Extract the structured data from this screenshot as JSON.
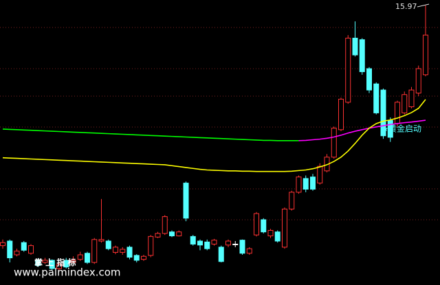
{
  "chart_data": {
    "type": "candlestick",
    "ylim": [
      6.81,
      16.15
    ],
    "up_color": "#ff3232",
    "down_color": "#54ffff",
    "flat_color": "#ffffff",
    "candles": [
      [
        8.1,
        8.2,
        8.3,
        8.0
      ],
      [
        8.25,
        7.7,
        8.3,
        7.55
      ],
      [
        7.8,
        7.92,
        8.0,
        7.75
      ],
      [
        8.2,
        7.95,
        8.25,
        7.9
      ],
      [
        7.85,
        8.1,
        8.15,
        7.8
      ],
      [
        7.62,
        7.45,
        7.68,
        7.4
      ],
      [
        7.55,
        7.62,
        7.7,
        7.5
      ],
      [
        7.62,
        7.35,
        7.65,
        7.3
      ],
      [
        7.35,
        7.48,
        7.55,
        7.3
      ],
      [
        7.62,
        7.4,
        7.7,
        7.35
      ],
      [
        7.55,
        7.62,
        7.75,
        7.5
      ],
      [
        7.65,
        7.8,
        7.9,
        7.6
      ],
      [
        7.85,
        7.55,
        7.9,
        7.5
      ],
      [
        7.55,
        8.3,
        8.35,
        7.5
      ],
      [
        8.25,
        8.3,
        9.63,
        8.2
      ],
      [
        8.25,
        8.0,
        8.3,
        7.95
      ],
      [
        7.88,
        8.05,
        8.1,
        7.82
      ],
      [
        7.88,
        7.98,
        8.05,
        7.8
      ],
      [
        8.05,
        7.72,
        8.1,
        7.65
      ],
      [
        7.78,
        7.62,
        7.82,
        7.55
      ],
      [
        7.65,
        7.75,
        7.8,
        7.6
      ],
      [
        7.78,
        8.4,
        8.45,
        7.72
      ],
      [
        8.38,
        8.5,
        8.55,
        8.35
      ],
      [
        8.5,
        9.05,
        9.1,
        8.45
      ],
      [
        8.55,
        8.42,
        8.6,
        8.38
      ],
      [
        8.42,
        8.55,
        8.6,
        8.4
      ],
      [
        10.15,
        9.0,
        10.2,
        8.9
      ],
      [
        8.4,
        8.15,
        8.45,
        8.1
      ],
      [
        8.25,
        8.12,
        8.3,
        7.95
      ],
      [
        8.22,
        8.0,
        8.3,
        7.95
      ],
      [
        8.15,
        8.28,
        8.32,
        8.1
      ],
      [
        8.05,
        7.58,
        8.1,
        7.55
      ],
      [
        8.12,
        8.25,
        8.3,
        8.05
      ],
      [
        8.15,
        8.15,
        8.25,
        8.05
      ],
      [
        8.28,
        7.85,
        8.3,
        7.8
      ],
      [
        7.85,
        8.0,
        8.05,
        7.8
      ],
      [
        8.45,
        9.15,
        9.2,
        8.4
      ],
      [
        8.95,
        8.55,
        9.0,
        8.5
      ],
      [
        8.42,
        8.6,
        8.65,
        8.35
      ],
      [
        8.55,
        8.25,
        8.6,
        8.2
      ],
      [
        8.05,
        9.3,
        9.35,
        8.0
      ],
      [
        9.3,
        9.85,
        9.9,
        9.25
      ],
      [
        9.85,
        10.35,
        10.4,
        9.8
      ],
      [
        10.3,
        9.95,
        10.4,
        9.85
      ],
      [
        10.35,
        9.95,
        10.45,
        9.9
      ],
      [
        10.15,
        10.7,
        10.8,
        10.1
      ],
      [
        10.55,
        11.0,
        11.1,
        10.5
      ],
      [
        11.0,
        11.95,
        12.0,
        10.95
      ],
      [
        11.9,
        12.9,
        12.95,
        11.85
      ],
      [
        12.8,
        14.9,
        15.0,
        12.75
      ],
      [
        14.9,
        14.35,
        15.45,
        14.3
      ],
      [
        14.85,
        13.8,
        14.9,
        13.7
      ],
      [
        13.9,
        13.2,
        13.95,
        13.1
      ],
      [
        13.4,
        12.45,
        13.45,
        12.4
      ],
      [
        13.2,
        11.7,
        13.25,
        11.6
      ],
      [
        12.2,
        11.65,
        12.3,
        11.5
      ],
      [
        12.1,
        12.8,
        12.85,
        12.0
      ],
      [
        12.45,
        13.05,
        13.15,
        12.4
      ],
      [
        12.65,
        13.2,
        13.3,
        12.6
      ],
      [
        13.1,
        13.9,
        14.0,
        13.0
      ],
      [
        13.7,
        15.0,
        15.97,
        13.65
      ]
    ],
    "series": [
      {
        "color": "#00ff00",
        "values": [
          11.92,
          11.91,
          11.9,
          11.89,
          11.88,
          11.87,
          11.86,
          11.85,
          11.84,
          11.83,
          11.82,
          11.81,
          11.8,
          11.79,
          11.78,
          11.77,
          11.76,
          11.75,
          11.74,
          11.73,
          11.72,
          11.71,
          11.7,
          11.69,
          11.68,
          11.67,
          11.66,
          11.65,
          11.64,
          11.63,
          11.62,
          11.61,
          11.6,
          11.59,
          11.58,
          11.57,
          11.56,
          11.55,
          11.55,
          11.54,
          11.54,
          11.54,
          11.54,
          null,
          null,
          null,
          null,
          null,
          null,
          null,
          null,
          null,
          null,
          null,
          null,
          null,
          null,
          null,
          null,
          null,
          null
        ]
      },
      {
        "color": "#ff00ff",
        "values": [
          null,
          null,
          null,
          null,
          null,
          null,
          null,
          null,
          null,
          null,
          null,
          null,
          null,
          null,
          null,
          null,
          null,
          null,
          null,
          null,
          null,
          null,
          null,
          null,
          null,
          null,
          null,
          null,
          null,
          null,
          null,
          null,
          null,
          null,
          null,
          null,
          null,
          null,
          null,
          null,
          null,
          null,
          11.54,
          11.55,
          11.57,
          11.59,
          11.62,
          11.66,
          11.72,
          11.79,
          11.85,
          11.9,
          11.95,
          11.99,
          12.03,
          12.07,
          12.1,
          12.13,
          12.15,
          12.18,
          12.21
        ]
      },
      {
        "color": "#ffff00",
        "values": [
          10.98,
          10.97,
          10.96,
          10.95,
          10.94,
          10.93,
          10.92,
          10.91,
          10.9,
          10.89,
          10.88,
          10.87,
          10.86,
          10.85,
          10.84,
          10.83,
          10.82,
          10.81,
          10.8,
          10.79,
          10.78,
          10.77,
          10.76,
          10.75,
          10.72,
          10.69,
          10.66,
          10.63,
          10.6,
          10.58,
          10.57,
          10.56,
          10.55,
          10.55,
          10.54,
          10.54,
          10.53,
          10.53,
          10.53,
          10.53,
          10.53,
          10.54,
          10.56,
          10.58,
          10.62,
          10.68,
          10.75,
          10.86,
          11.0,
          11.2,
          11.45,
          11.72,
          11.95,
          12.1,
          12.18,
          12.22,
          12.28,
          12.36,
          12.46,
          12.6,
          12.89
        ]
      }
    ],
    "max_label": "15.97",
    "signal_label": "黄金启动",
    "watermark_cn": "掌 上 指 标",
    "watermark": "www.palmindex.com"
  }
}
